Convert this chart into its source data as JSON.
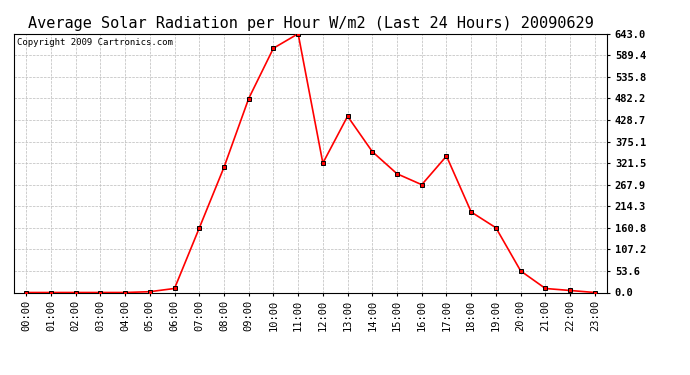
{
  "title": "Average Solar Radiation per Hour W/m2 (Last 24 Hours) 20090629",
  "copyright": "Copyright 2009 Cartronics.com",
  "hours": [
    "00:00",
    "01:00",
    "02:00",
    "03:00",
    "04:00",
    "05:00",
    "06:00",
    "07:00",
    "08:00",
    "09:00",
    "10:00",
    "11:00",
    "12:00",
    "13:00",
    "14:00",
    "15:00",
    "16:00",
    "17:00",
    "18:00",
    "19:00",
    "20:00",
    "21:00",
    "22:00",
    "23:00"
  ],
  "values": [
    0.0,
    0.0,
    0.0,
    0.0,
    0.0,
    2.0,
    10.0,
    160.0,
    311.0,
    482.0,
    607.0,
    643.0,
    321.5,
    438.0,
    350.0,
    295.0,
    267.9,
    339.0,
    200.0,
    160.8,
    53.6,
    10.0,
    5.0,
    0.0
  ],
  "line_color": "#ff0000",
  "marker": "s",
  "marker_color": "#000000",
  "marker_size": 3,
  "bg_color": "#ffffff",
  "plot_bg_color": "#ffffff",
  "grid_color": "#bbbbbb",
  "yticks": [
    0.0,
    53.6,
    107.2,
    160.8,
    214.3,
    267.9,
    321.5,
    375.1,
    428.7,
    482.2,
    535.8,
    589.4,
    643.0
  ],
  "ylim": [
    0.0,
    643.0
  ],
  "title_fontsize": 11,
  "copyright_fontsize": 6.5,
  "tick_fontsize": 7.5
}
